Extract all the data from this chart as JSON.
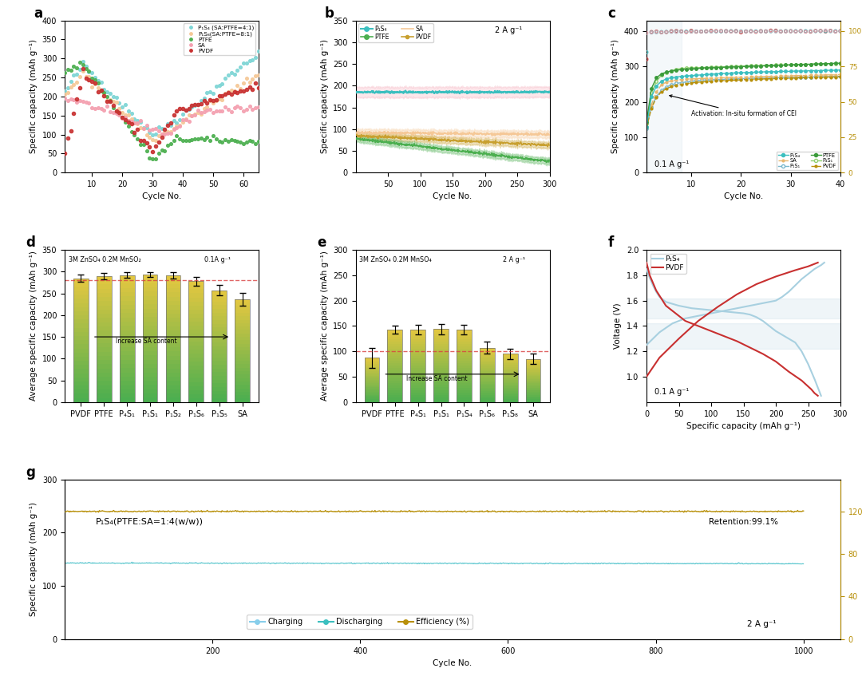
{
  "colors": {
    "teal": "#3BBFBF",
    "light_teal": "#7DD5D5",
    "orange_light": "#F5C897",
    "green": "#4CAF50",
    "light_green": "#90EE90",
    "pink": "#F4A0B0",
    "red_dark": "#C83030",
    "gold": "#B8900A",
    "light_blue": "#A8D0E0",
    "cyan_light": "#87CEEB",
    "p1s4_color": "#3BBFBF",
    "p1s1_color": "#7AB8CC",
    "p4s1_color": "#90D070",
    "sa_color": "#E8B870",
    "ptfe_color": "#3A9A3A",
    "pvdf_color": "#B8900A",
    "pvdf_red": "#C83030"
  },
  "panel_d": {
    "ylabel": "Average specific capacity (mAh g⁻¹)",
    "ylim": [
      0,
      350
    ],
    "dashed_line": 280,
    "categories": [
      "PVDF",
      "PTFE",
      "P₄S₁",
      "P₁S₁",
      "P₁S₂",
      "P₁S₆",
      "P₁S₅",
      "SA"
    ],
    "values": [
      285,
      290,
      292,
      293,
      291,
      278,
      257,
      237
    ],
    "errors": [
      8,
      7,
      6,
      5,
      7,
      10,
      12,
      15
    ]
  },
  "panel_e": {
    "ylabel": "Average specific capacity (mAh g⁻¹)",
    "ylim": [
      0,
      300
    ],
    "dashed_line": 100,
    "categories": [
      "PVDF",
      "PTFE",
      "P₄S₁",
      "P₁S₁",
      "P₁S₄",
      "P₁S₆",
      "P₁S₈",
      "SA"
    ],
    "values": [
      87,
      143,
      143,
      144,
      143,
      107,
      95,
      85
    ],
    "errors": [
      20,
      8,
      10,
      10,
      10,
      12,
      10,
      10
    ]
  }
}
